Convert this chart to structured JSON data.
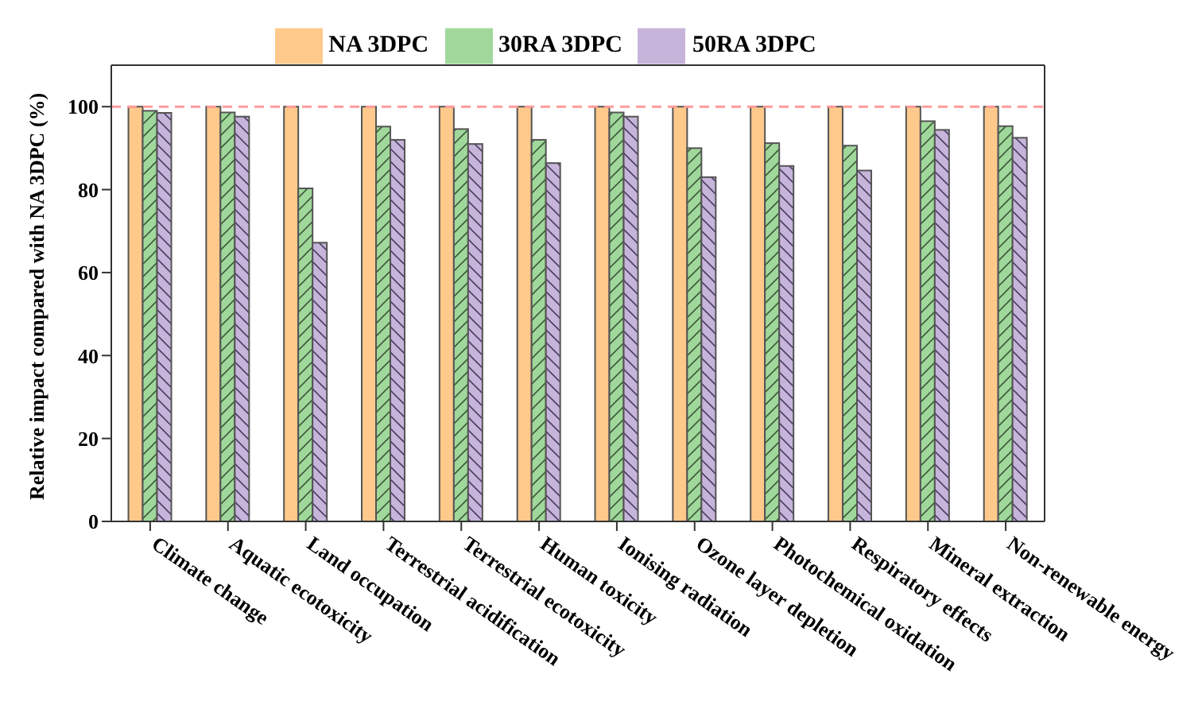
{
  "chart_data": {
    "type": "bar",
    "ylabel": "Relative impact compared with NA 3DPC (%)",
    "categories": [
      "Climate change",
      "Aquatic ecotoxicity",
      "Land occupation",
      "Terrestrial acidification",
      "Terrestrial ecotoxicity",
      "Human toxicity",
      "Ionising radiation",
      "Ozone layer depletion",
      "Photochemical oxidation",
      "Respiratory effects",
      "Mineral extraction",
      "Non-renewable energy"
    ],
    "series": [
      {
        "name": "NA 3DPC",
        "color": "#ffc98b",
        "values": [
          100,
          100,
          100,
          100,
          100,
          100,
          100,
          100,
          100,
          100,
          100,
          100
        ]
      },
      {
        "name": "30RA 3DPC",
        "color": "#a0d89b",
        "values": [
          99,
          98.6,
          80.3,
          95.2,
          94.6,
          92,
          98.6,
          90,
          91.2,
          90.6,
          96.5,
          95.3
        ]
      },
      {
        "name": "50RA 3DPC",
        "color": "#c6b4da",
        "values": [
          98.5,
          97.6,
          67.2,
          92,
          91,
          86.4,
          97.6,
          83,
          85.7,
          84.6,
          94.4,
          92.5
        ]
      }
    ],
    "ylim": [
      0,
      110
    ],
    "yticks": [
      0,
      20,
      40,
      60,
      80,
      100
    ],
    "ref_lines": [
      {
        "axis": "y",
        "value": 100,
        "color": "#ff9a9a",
        "line_style": "dashed"
      }
    ],
    "grid": false,
    "legend": "top"
  }
}
